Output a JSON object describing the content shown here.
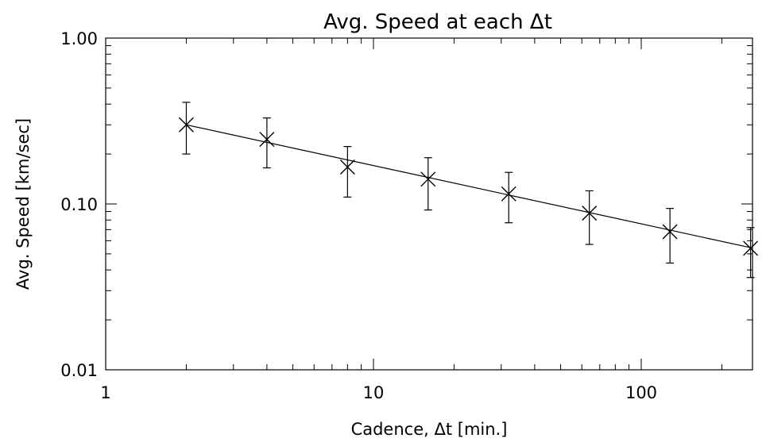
{
  "chart_data": {
    "type": "scatter",
    "title": "Avg. Speed at each Δt",
    "xlabel": "Cadence, Δt [min.]",
    "ylabel": "Avg. Speed [km/sec]",
    "x_scale": "log",
    "y_scale": "log",
    "xlim": [
      1,
      300
    ],
    "ylim": [
      0.01,
      1.0
    ],
    "x_ticks": [
      1,
      10,
      100
    ],
    "x_tick_labels": [
      "1",
      "10",
      "100"
    ],
    "y_ticks": [
      0.01,
      0.1,
      1.0
    ],
    "y_tick_labels": [
      "0.01",
      "0.10",
      "1.00"
    ],
    "grid": false,
    "marker": "x",
    "color": "#000000",
    "series": [
      {
        "x": [
          2,
          4,
          8,
          16,
          32,
          64,
          128,
          256
        ],
        "y": [
          0.3,
          0.245,
          0.167,
          0.141,
          0.115,
          0.088,
          0.068,
          0.054
        ],
        "y_err_low": [
          0.2,
          0.165,
          0.11,
          0.092,
          0.077,
          0.057,
          0.044,
          0.036
        ],
        "y_err_high": [
          0.41,
          0.33,
          0.222,
          0.19,
          0.155,
          0.12,
          0.094,
          0.072
        ]
      }
    ],
    "fit_line": {
      "x": [
        2,
        256
      ],
      "y": [
        0.3,
        0.0545
      ]
    }
  }
}
